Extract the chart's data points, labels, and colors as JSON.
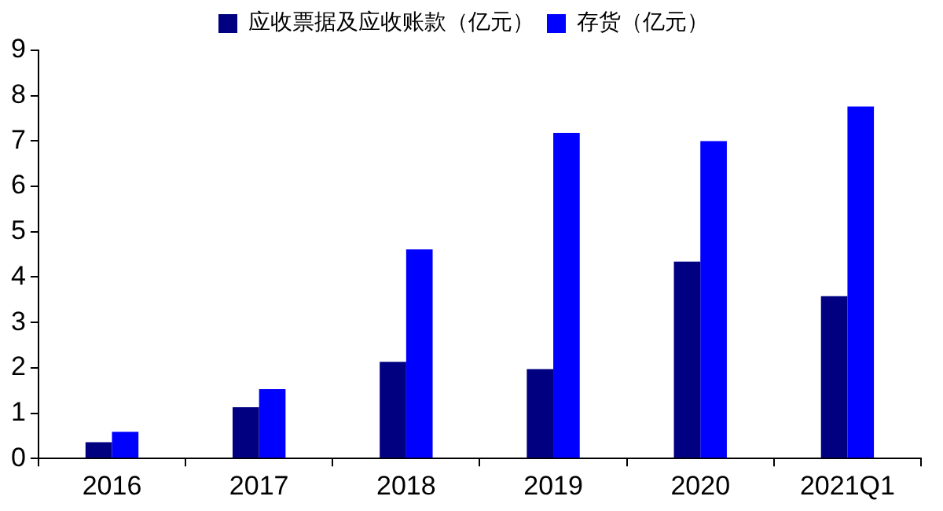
{
  "chart_data": {
    "type": "bar",
    "categories": [
      "2016",
      "2017",
      "2018",
      "2019",
      "2020",
      "2021Q1"
    ],
    "series": [
      {
        "name": "应收票据及应收账款（亿元）",
        "color": "#000080",
        "values": [
          0.36,
          1.13,
          2.13,
          1.97,
          4.34,
          3.58
        ]
      },
      {
        "name": "存货（亿元）",
        "color": "#0000ff",
        "values": [
          0.59,
          1.53,
          4.61,
          7.18,
          7.0,
          7.76
        ]
      }
    ],
    "ylim": [
      0,
      9
    ],
    "yticks": [
      0,
      1,
      2,
      3,
      4,
      5,
      6,
      7,
      8,
      9
    ],
    "legend": "top"
  }
}
